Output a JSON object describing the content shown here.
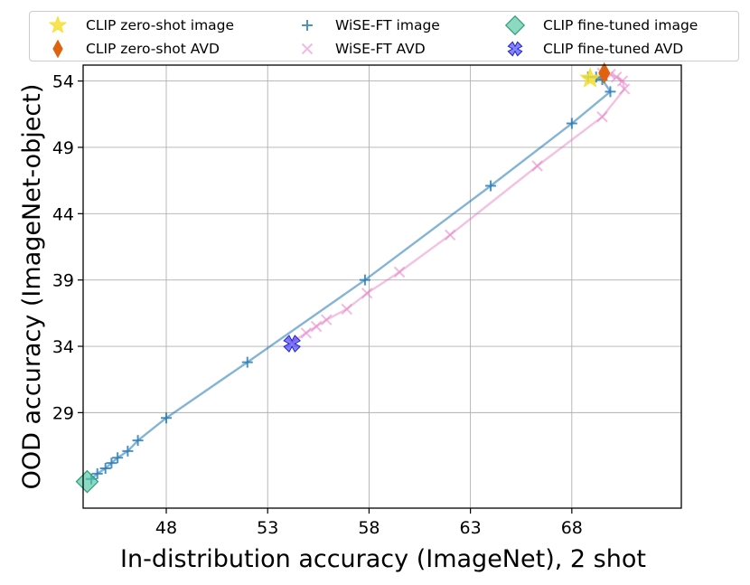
{
  "chart_data": {
    "type": "line",
    "title": "",
    "xlabel": "In-distribution accuracy (ImageNet), 2 shot",
    "ylabel": "OOD accuracy (ImageNet-object)",
    "xlim": [
      43.9,
      73.4
    ],
    "ylim": [
      21.8,
      55.2
    ],
    "xticks": [
      48,
      53,
      58,
      63,
      68
    ],
    "yticks": [
      29,
      34,
      39,
      44,
      49,
      54
    ],
    "grid": true,
    "legend_position": "top",
    "series": [
      {
        "name": "WiSE-FT image",
        "kind": "line+markers",
        "marker": "plus",
        "color": "#1f77b4",
        "x": [
          44.3,
          44.6,
          45.0,
          45.3,
          45.6,
          46.1,
          46.6,
          48.0,
          52.0,
          57.8,
          64.0,
          68.0,
          69.9,
          69.5,
          69.2,
          68.8
        ],
        "y": [
          24.0,
          24.4,
          24.8,
          25.2,
          25.6,
          26.1,
          26.9,
          28.6,
          32.8,
          39.0,
          46.1,
          50.8,
          53.2,
          54.1,
          54.3,
          54.3
        ]
      },
      {
        "name": "WiSE-FT AVD",
        "kind": "line+markers",
        "marker": "x",
        "color": "#e377c2",
        "x": [
          54.2,
          54.9,
          55.4,
          55.9,
          56.9,
          57.9,
          59.5,
          62.0,
          66.3,
          69.5,
          70.6,
          70.5,
          70.2,
          69.9,
          69.5
        ],
        "y": [
          34.3,
          35.0,
          35.5,
          36.0,
          36.8,
          38.0,
          39.6,
          42.4,
          47.6,
          51.3,
          53.4,
          54.0,
          54.3,
          54.5,
          54.6
        ]
      },
      {
        "name": "CLIP zero-shot image",
        "kind": "scatter",
        "marker": "star",
        "color": "#f5e032",
        "x": [
          68.9
        ],
        "y": [
          54.2
        ]
      },
      {
        "name": "CLIP zero-shot AVD",
        "kind": "scatter",
        "marker": "thin_diamond",
        "color": "#e0620e",
        "x": [
          69.6
        ],
        "y": [
          54.6
        ]
      },
      {
        "name": "CLIP fine-tuned image",
        "kind": "scatter",
        "marker": "diamond",
        "color": "#4ec4a0",
        "x": [
          44.1
        ],
        "y": [
          23.8
        ]
      },
      {
        "name": "CLIP fine-tuned AVD",
        "kind": "scatter",
        "marker": "X",
        "color": "#4040ff",
        "x": [
          54.2
        ],
        "y": [
          34.2
        ]
      }
    ],
    "legend_order": [
      "CLIP zero-shot image",
      "CLIP zero-shot AVD",
      "WiSE-FT image",
      "WiSE-FT AVD",
      "CLIP fine-tuned image",
      "CLIP fine-tuned AVD"
    ]
  }
}
